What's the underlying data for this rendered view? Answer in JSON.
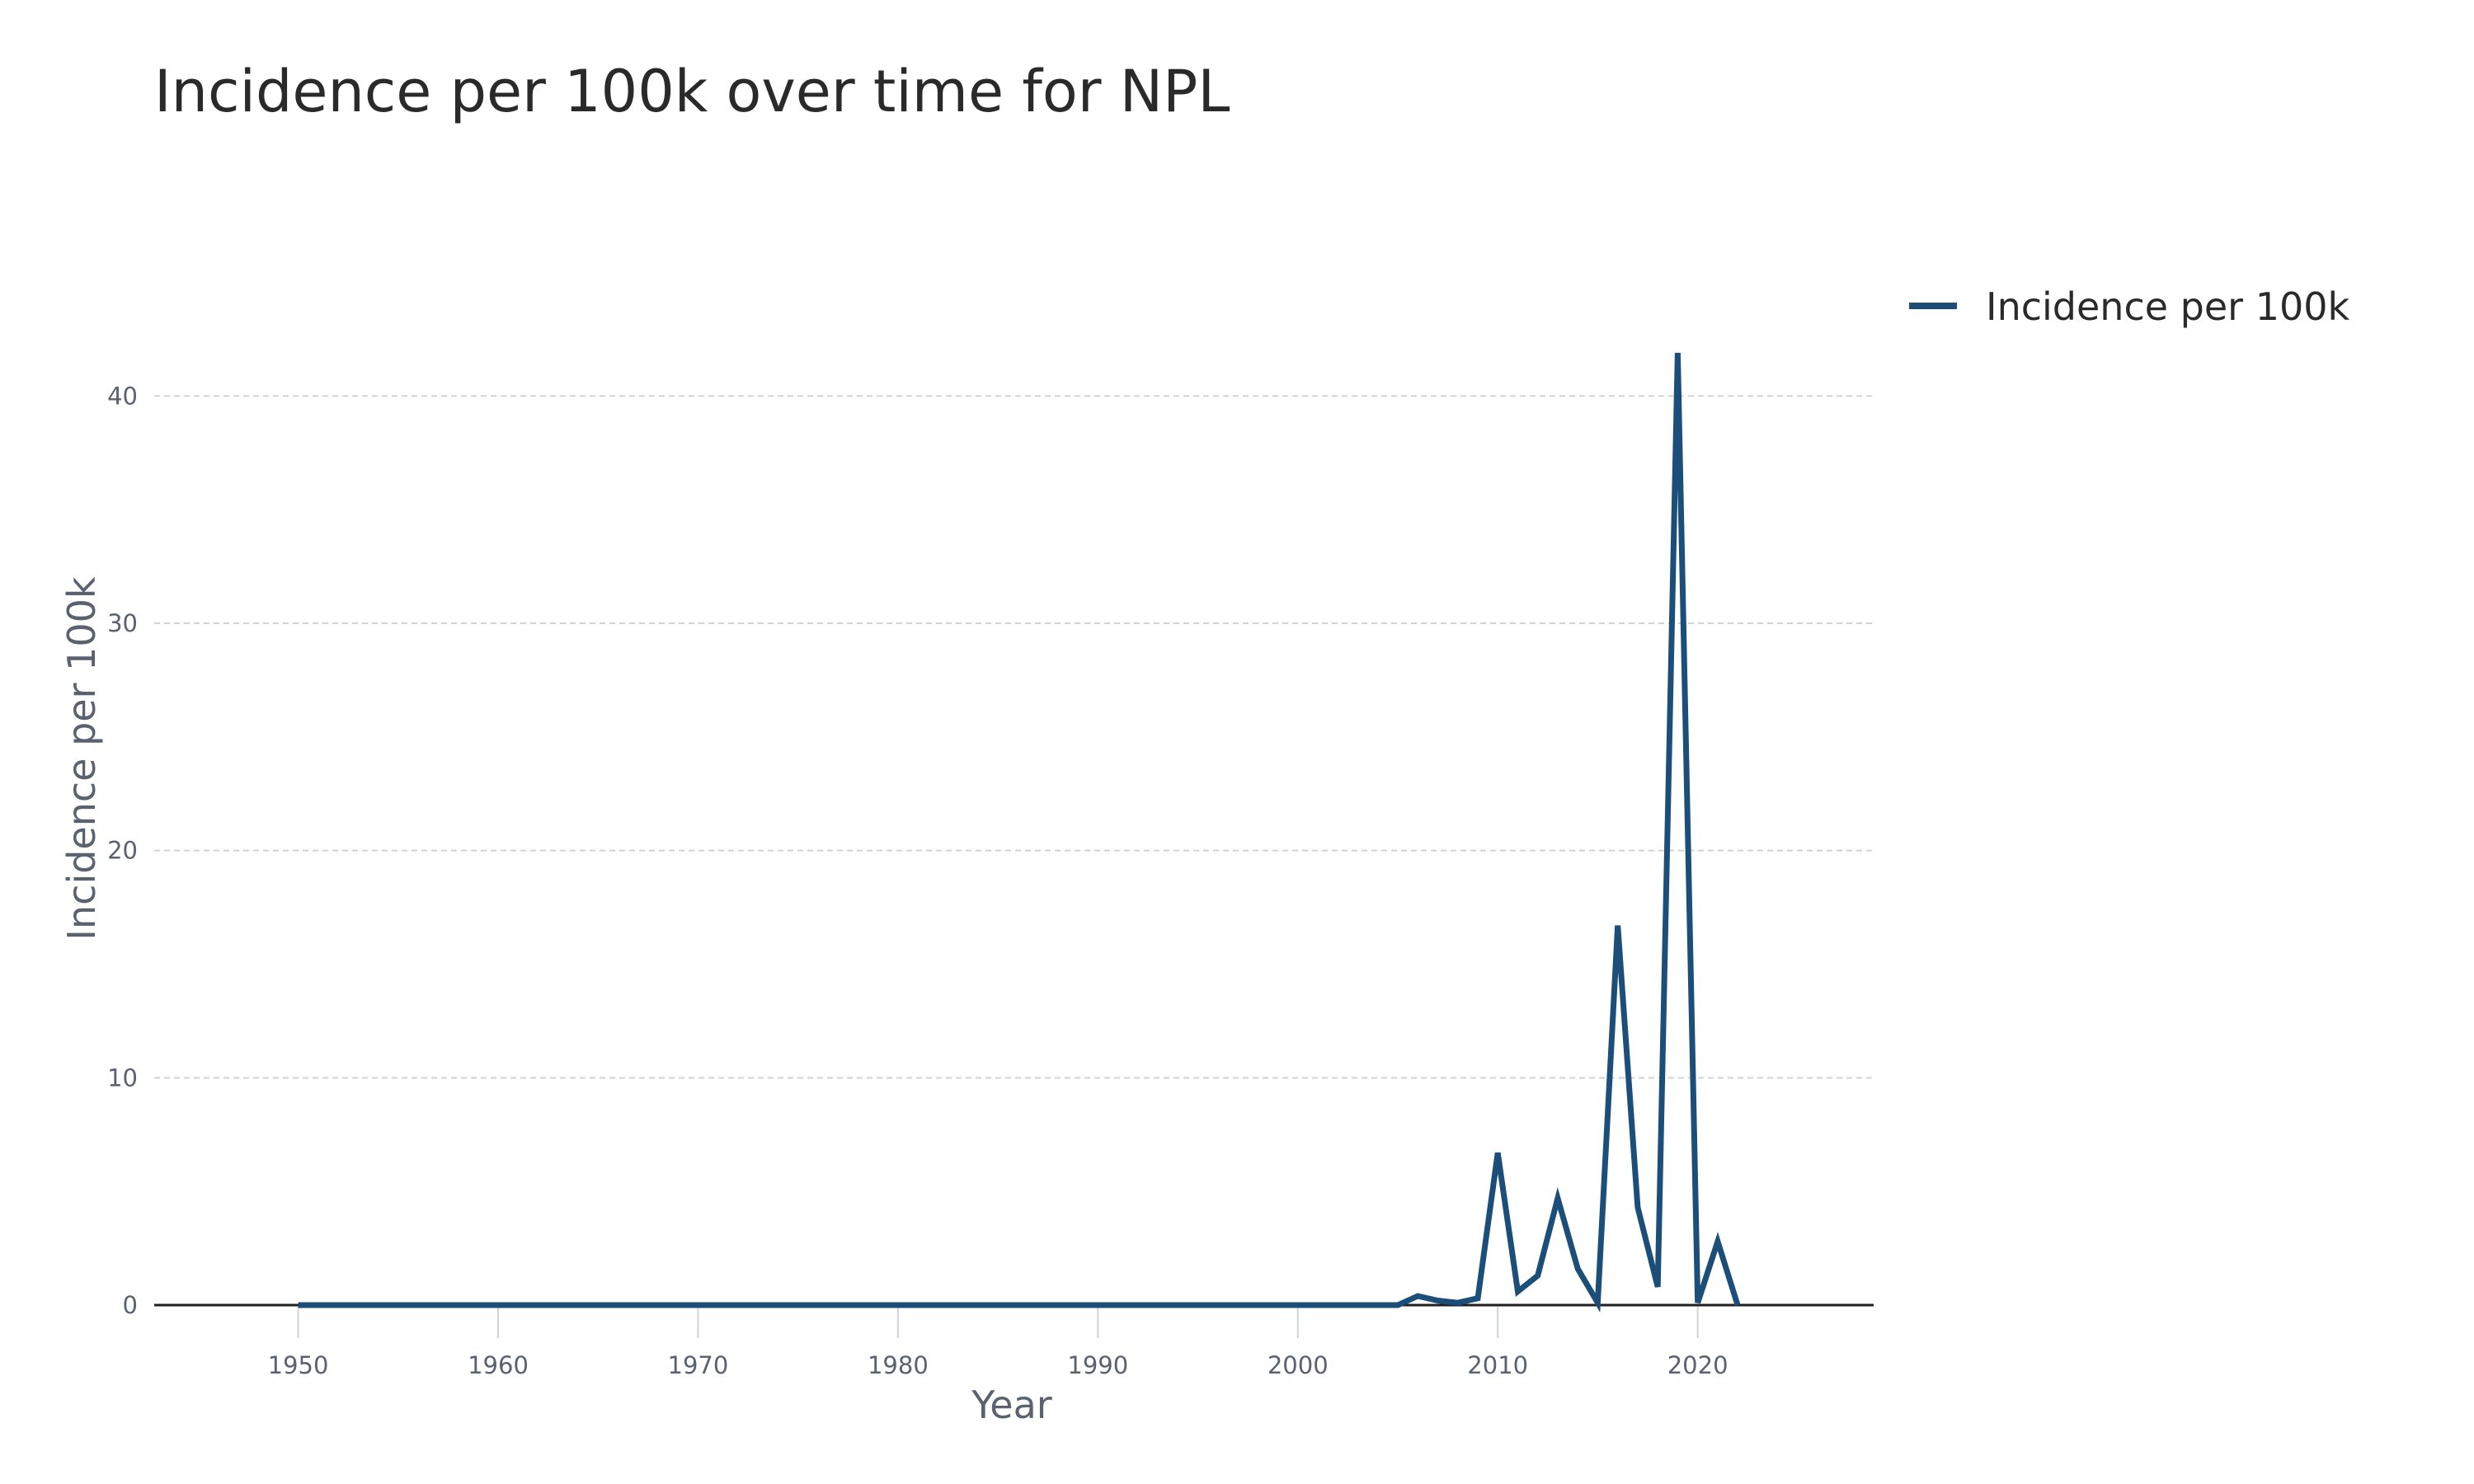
{
  "chart_data": {
    "type": "line",
    "title": "Incidence per 100k over time for NPL",
    "xlabel": "Year",
    "ylabel": "Incidence per 100k",
    "xlim": [
      1942.8,
      2028.8
    ],
    "ylim": [
      0,
      44
    ],
    "x_ticks": [
      1950,
      1960,
      1970,
      1980,
      1990,
      2000,
      2010,
      2020
    ],
    "y_ticks": [
      0,
      10,
      20,
      30,
      40
    ],
    "grid": true,
    "legend_position": "top-right",
    "colors": {
      "series": "#1b4f7a",
      "grid": "#cfd3d8",
      "zero_line": "#1f1f1f"
    },
    "series": [
      {
        "name": "Incidence per 100k",
        "x": [
          1950,
          1951,
          1952,
          1953,
          1954,
          1955,
          1956,
          1957,
          1958,
          1959,
          1960,
          1961,
          1962,
          1963,
          1964,
          1965,
          1966,
          1967,
          1968,
          1969,
          1970,
          1971,
          1972,
          1973,
          1974,
          1975,
          1976,
          1977,
          1978,
          1979,
          1980,
          1981,
          1982,
          1983,
          1984,
          1985,
          1986,
          1987,
          1988,
          1989,
          1990,
          1991,
          1992,
          1993,
          1994,
          1995,
          1996,
          1997,
          1998,
          1999,
          2000,
          2001,
          2002,
          2003,
          2004,
          2005,
          2006,
          2007,
          2008,
          2009,
          2010,
          2011,
          2012,
          2013,
          2014,
          2015,
          2016,
          2017,
          2018,
          2019,
          2020,
          2021,
          2022
        ],
        "values": [
          0,
          0,
          0,
          0,
          0,
          0,
          0,
          0,
          0,
          0,
          0,
          0,
          0,
          0,
          0,
          0,
          0,
          0,
          0,
          0,
          0,
          0,
          0,
          0,
          0,
          0,
          0,
          0,
          0,
          0,
          0,
          0,
          0,
          0,
          0,
          0,
          0,
          0,
          0,
          0,
          0,
          0,
          0,
          0,
          0,
          0,
          0,
          0,
          0,
          0,
          0,
          0,
          0,
          0,
          0,
          0,
          0.4,
          0.2,
          0.1,
          0.3,
          6.7,
          0.6,
          1.3,
          4.7,
          1.6,
          0.1,
          16.7,
          4.3,
          0.8,
          41.9,
          0.1,
          2.8,
          0
        ]
      }
    ]
  }
}
